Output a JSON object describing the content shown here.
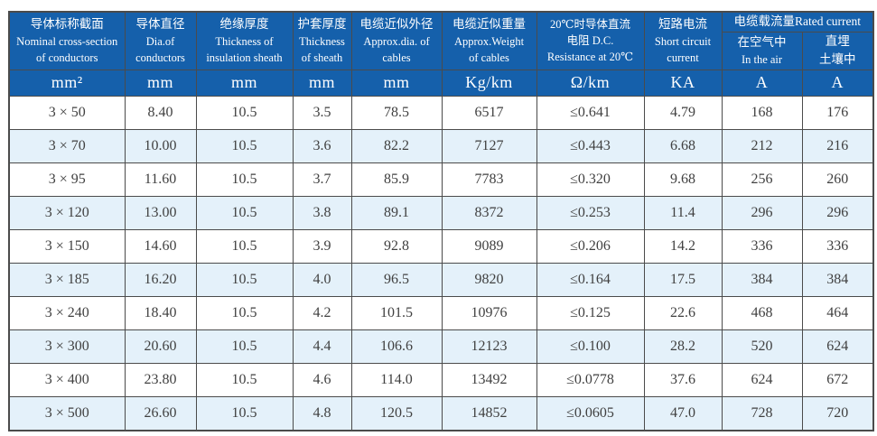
{
  "colors": {
    "header_bg": "#1560ab",
    "header_text": "#ffffff",
    "row_alt_bg": "#e4f1fa",
    "grid_border": "#4b4b4b",
    "cell_text": "#404040"
  },
  "table": {
    "columns": [
      {
        "id": "nominal-cross-section",
        "lines": [
          "导体标称截面",
          "Nominal cross-section",
          "of conductors"
        ],
        "unit": "mm²"
      },
      {
        "id": "conductor-diameter",
        "lines": [
          "导体直径",
          "Dia.of",
          "conductors"
        ],
        "unit": "mm"
      },
      {
        "id": "insulation-thickness",
        "lines": [
          "绝缘厚度",
          "Thickness of",
          "insulation sheath"
        ],
        "unit": "mm"
      },
      {
        "id": "sheath-thickness",
        "lines": [
          "护套厚度",
          "Thickness",
          "of sheath"
        ],
        "unit": "mm"
      },
      {
        "id": "approx-diameter",
        "lines": [
          "电缆近似外径",
          "Approx.dia. of",
          "cables"
        ],
        "unit": "mm"
      },
      {
        "id": "approx-weight",
        "lines": [
          "电缆近似重量",
          "Approx.Weight",
          "of cables"
        ],
        "unit": "Kg/km"
      },
      {
        "id": "dc-resistance",
        "lines": [
          "20℃时导体直流",
          "电阻 D.C.",
          "Resistance at 20℃"
        ],
        "unit": "Ω/km"
      },
      {
        "id": "short-circuit-current",
        "lines": [
          "短路电流",
          "Short circuit",
          "current"
        ],
        "unit": "KA"
      }
    ],
    "rated_current_group": {
      "title": "电缆载流量Rated current",
      "sub_columns": [
        {
          "id": "rated-current-air",
          "lines": [
            "在空气中",
            "In the air"
          ],
          "unit": "A"
        },
        {
          "id": "rated-current-soil",
          "lines": [
            "直埋",
            "土壤中"
          ],
          "unit": "A"
        }
      ]
    },
    "rows": [
      [
        "3 × 50",
        "8.40",
        "10.5",
        "3.5",
        "78.5",
        "6517",
        "≤0.641",
        "4.79",
        "168",
        "176"
      ],
      [
        "3 × 70",
        "10.00",
        "10.5",
        "3.6",
        "82.2",
        "7127",
        "≤0.443",
        "6.68",
        "212",
        "216"
      ],
      [
        "3 × 95",
        "11.60",
        "10.5",
        "3.7",
        "85.9",
        "7783",
        "≤0.320",
        "9.68",
        "256",
        "260"
      ],
      [
        "3 × 120",
        "13.00",
        "10.5",
        "3.8",
        "89.1",
        "8372",
        "≤0.253",
        "11.4",
        "296",
        "296"
      ],
      [
        "3 × 150",
        "14.60",
        "10.5",
        "3.9",
        "92.8",
        "9089",
        "≤0.206",
        "14.2",
        "336",
        "336"
      ],
      [
        "3 × 185",
        "16.20",
        "10.5",
        "4.0",
        "96.5",
        "9820",
        "≤0.164",
        "17.5",
        "384",
        "384"
      ],
      [
        "3 × 240",
        "18.40",
        "10.5",
        "4.2",
        "101.5",
        "10976",
        "≤0.125",
        "22.6",
        "468",
        "464"
      ],
      [
        "3 × 300",
        "20.60",
        "10.5",
        "4.4",
        "106.6",
        "12123",
        "≤0.100",
        "28.2",
        "520",
        "624"
      ],
      [
        "3 × 400",
        "23.80",
        "10.5",
        "4.6",
        "114.0",
        "13492",
        "≤0.0778",
        "37.6",
        "624",
        "672"
      ],
      [
        "3 × 500",
        "26.60",
        "10.5",
        "4.8",
        "120.5",
        "14852",
        "≤0.0605",
        "47.0",
        "728",
        "720"
      ]
    ]
  }
}
